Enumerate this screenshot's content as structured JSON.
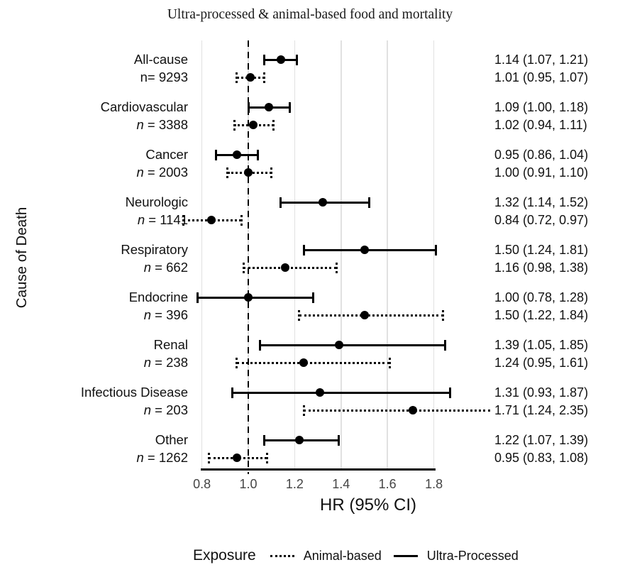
{
  "chart_data": {
    "type": "forest",
    "title": "Ultra-processed & animal-based food and mortality",
    "xlabel": "HR (95% CI)",
    "ylabel": "Cause of Death",
    "x_ticks": [
      0.8,
      1.0,
      1.2,
      1.4,
      1.6,
      1.8
    ],
    "x_tick_labels": [
      "0.8",
      "1.0",
      "1.2",
      "1.4",
      "1.6",
      "1.8"
    ],
    "xlim": [
      0.75,
      1.9
    ],
    "reference_line": 1.0,
    "grid": true,
    "legend": {
      "title": "Exposure",
      "position": "bottom",
      "items": [
        {
          "label": "Animal-based",
          "style": "dotted"
        },
        {
          "label": "Ultra-Processed",
          "style": "solid"
        }
      ]
    },
    "groups": [
      {
        "name": "All-cause",
        "n_label": "n= 9293",
        "italic_n": false,
        "ultra_processed": {
          "est": 1.14,
          "lo": 1.07,
          "hi": 1.21,
          "label": "1.14 (1.07, 1.21)"
        },
        "animal_based": {
          "est": 1.01,
          "lo": 0.95,
          "hi": 1.07,
          "label": "1.01 (0.95, 1.07)"
        }
      },
      {
        "name": "Cardiovascular",
        "n_label": "n = 3388",
        "italic_n": true,
        "ultra_processed": {
          "est": 1.09,
          "lo": 1.0,
          "hi": 1.18,
          "label": "1.09 (1.00, 1.18)"
        },
        "animal_based": {
          "est": 1.02,
          "lo": 0.94,
          "hi": 1.11,
          "label": "1.02 (0.94, 1.11)"
        }
      },
      {
        "name": "Cancer",
        "n_label": "n = 2003",
        "italic_n": true,
        "ultra_processed": {
          "est": 0.95,
          "lo": 0.86,
          "hi": 1.04,
          "label": "0.95 (0.86, 1.04)"
        },
        "animal_based": {
          "est": 1.0,
          "lo": 0.91,
          "hi": 1.1,
          "label": "1.00 (0.91, 1.10)"
        }
      },
      {
        "name": "Neurologic",
        "n_label": "n = 1141",
        "italic_n": true,
        "ultra_processed": {
          "est": 1.32,
          "lo": 1.14,
          "hi": 1.52,
          "label": "1.32 (1.14, 1.52)"
        },
        "animal_based": {
          "est": 0.84,
          "lo": 0.72,
          "hi": 0.97,
          "label": "0.84 (0.72, 0.97)"
        }
      },
      {
        "name": "Respiratory",
        "n_label": "n = 662",
        "italic_n": true,
        "ultra_processed": {
          "est": 1.5,
          "lo": 1.24,
          "hi": 1.81,
          "label": "1.50 (1.24, 1.81)"
        },
        "animal_based": {
          "est": 1.16,
          "lo": 0.98,
          "hi": 1.38,
          "label": "1.16 (0.98, 1.38)"
        }
      },
      {
        "name": "Endocrine",
        "n_label": "n = 396",
        "italic_n": true,
        "ultra_processed": {
          "est": 1.0,
          "lo": 0.78,
          "hi": 1.28,
          "label": "1.00 (0.78, 1.28)"
        },
        "animal_based": {
          "est": 1.5,
          "lo": 1.22,
          "hi": 1.84,
          "label": "1.50 (1.22, 1.84)"
        }
      },
      {
        "name": "Renal",
        "n_label": "n = 238",
        "italic_n": true,
        "ultra_processed": {
          "est": 1.39,
          "lo": 1.05,
          "hi": 1.85,
          "label": "1.39 (1.05, 1.85)"
        },
        "animal_based": {
          "est": 1.24,
          "lo": 0.95,
          "hi": 1.61,
          "label": "1.24 (0.95, 1.61)"
        }
      },
      {
        "name": "Infectious Disease",
        "n_label": "n = 203",
        "italic_n": true,
        "ultra_processed": {
          "est": 1.31,
          "lo": 0.93,
          "hi": 1.87,
          "label": "1.31 (0.93, 1.87)"
        },
        "animal_based": {
          "est": 1.71,
          "lo": 1.24,
          "hi": 2.35,
          "label": "1.71 (1.24, 2.35)"
        }
      },
      {
        "name": "Other",
        "n_label": "n = 1262",
        "italic_n": true,
        "ultra_processed": {
          "est": 1.22,
          "lo": 1.07,
          "hi": 1.39,
          "label": "1.22 (1.07, 1.39)"
        },
        "animal_based": {
          "est": 0.95,
          "lo": 0.83,
          "hi": 1.08,
          "label": "0.95 (0.83, 1.08)"
        }
      }
    ],
    "colors": {
      "line": "#000000",
      "gridline": "#e1e1e1",
      "tick_text": "#454545"
    }
  }
}
